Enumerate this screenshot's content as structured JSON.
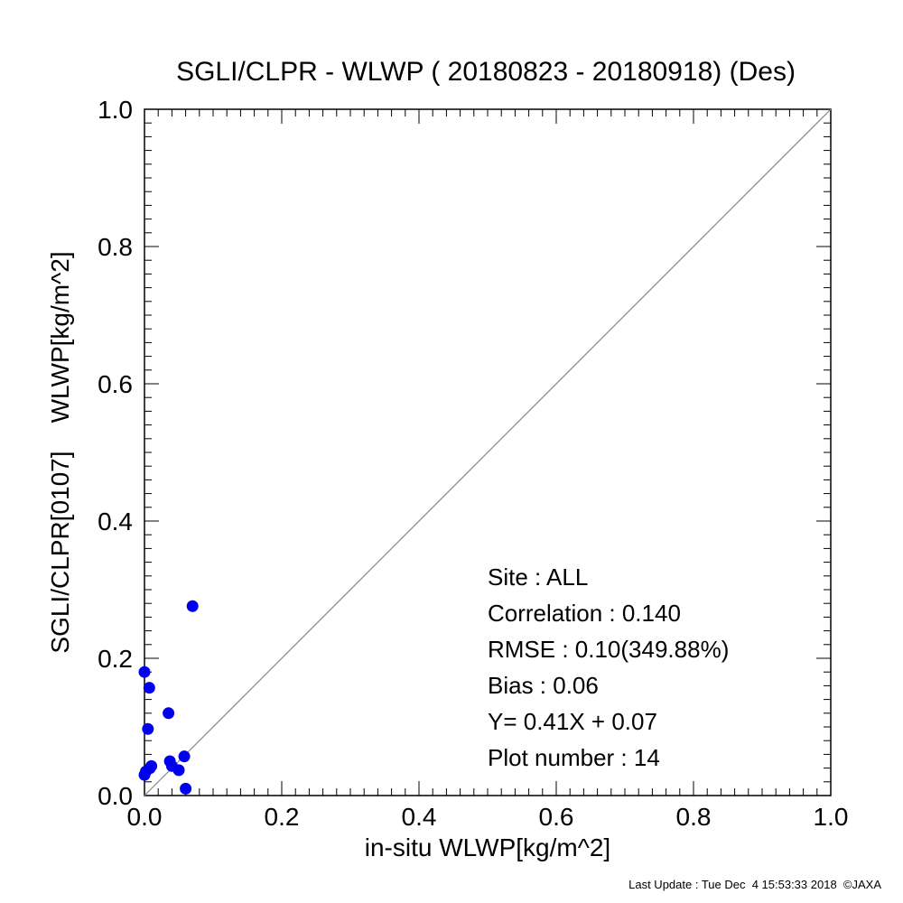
{
  "chart_data": {
    "type": "scatter",
    "title": "SGLI/CLPR - WLWP ( 20180823 - 20180918) (Des)",
    "xlabel": "in-situ WLWP[kg/m^2]",
    "ylabel": "SGLI/CLPR[0107]    WLWP[kg/m^2]",
    "xlim": [
      0.0,
      1.0
    ],
    "ylim": [
      0.0,
      1.0
    ],
    "x_ticks": [
      "0.0",
      "0.2",
      "0.4",
      "0.6",
      "0.8",
      "1.0"
    ],
    "y_ticks": [
      "0.0",
      "0.2",
      "0.4",
      "0.6",
      "0.8",
      "1.0"
    ],
    "grid": false,
    "reference_line": "1:1",
    "marker_color": "#0000ee",
    "points": [
      {
        "x": 0.07,
        "y": 0.276
      },
      {
        "x": 0.0,
        "y": 0.18
      },
      {
        "x": 0.007,
        "y": 0.157
      },
      {
        "x": 0.035,
        "y": 0.12
      },
      {
        "x": 0.005,
        "y": 0.097
      },
      {
        "x": 0.058,
        "y": 0.057
      },
      {
        "x": 0.037,
        "y": 0.05
      },
      {
        "x": 0.04,
        "y": 0.043
      },
      {
        "x": 0.01,
        "y": 0.043
      },
      {
        "x": 0.008,
        "y": 0.04
      },
      {
        "x": 0.05,
        "y": 0.037
      },
      {
        "x": 0.002,
        "y": 0.035
      },
      {
        "x": 0.06,
        "y": 0.01
      },
      {
        "x": 0.0,
        "y": 0.03
      }
    ],
    "stats": [
      "Site : ALL",
      "Correlation :    0.140",
      "RMSE :     0.10(349.88%)",
      "Bias :     0.06",
      "Y=   0.41X +    0.07",
      "Plot number :        14"
    ],
    "footer": "Last Update : Tue Dec  4 15:53:33 2018  ©JAXA"
  }
}
